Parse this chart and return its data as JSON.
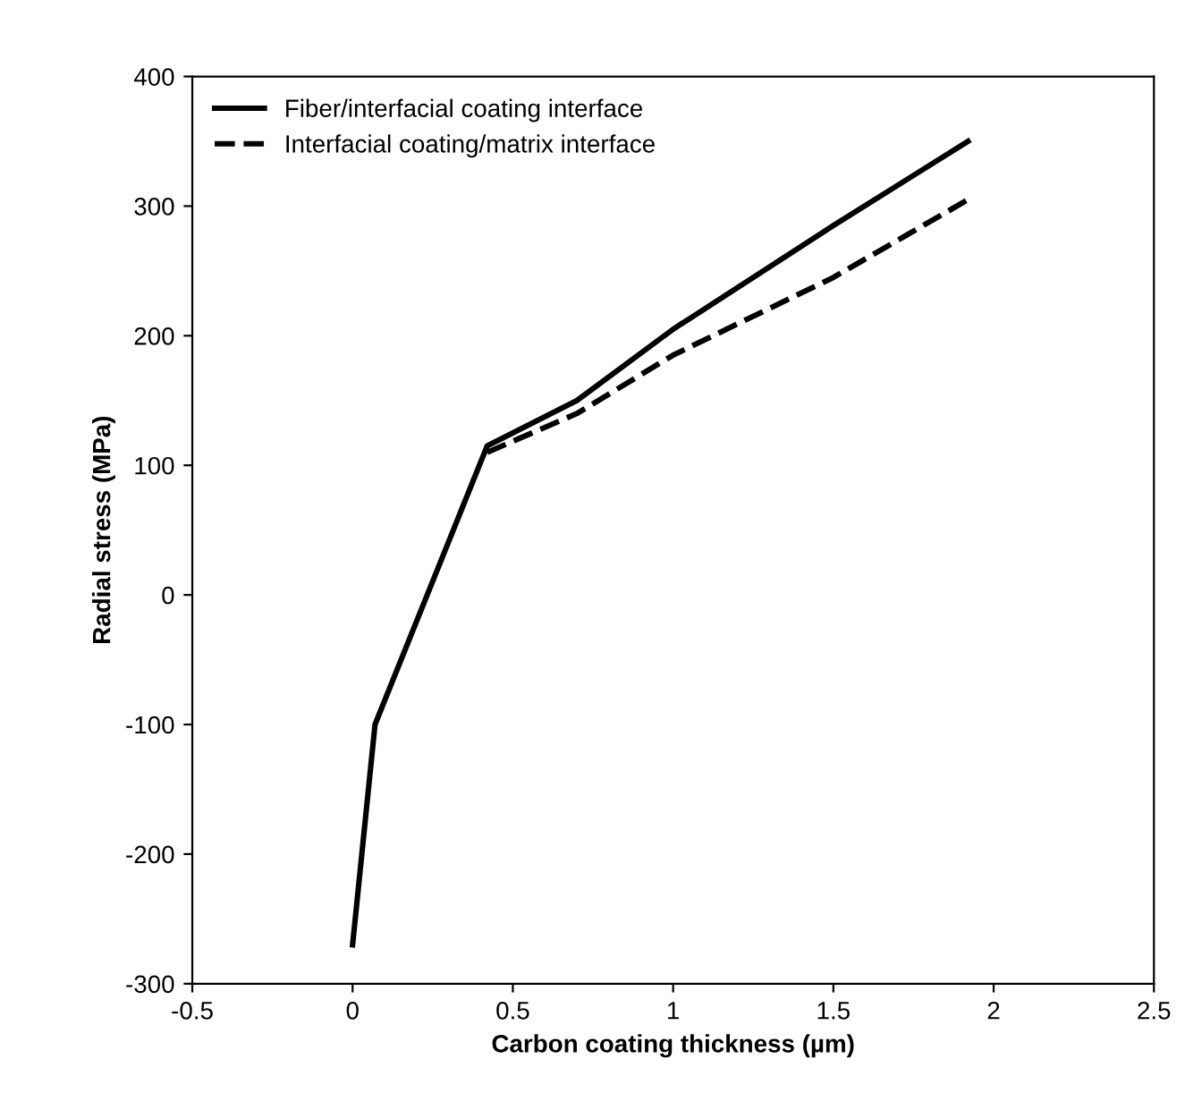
{
  "chart_data": {
    "type": "line",
    "xlabel": "Carbon coating thickness (µm)",
    "ylabel": "Radial stress (MPa)",
    "xlim": [
      -0.5,
      2.5
    ],
    "xticks": [
      -0.5,
      0,
      0.5,
      1,
      1.5,
      2,
      2.5
    ],
    "ylim": [
      -300,
      400
    ],
    "yticks": [
      -300,
      -200,
      -100,
      0,
      100,
      200,
      300,
      400
    ],
    "grid": false,
    "legend": "top left",
    "marker": "none",
    "series": [
      {
        "name": "Fiber/interfacial coating interface",
        "color": "#000000",
        "line_style": "solid",
        "x": [
          0,
          0.07,
          0.42,
          0.7,
          1,
          1.5,
          1.92
        ],
        "values": [
          -270,
          -100,
          115,
          150,
          205,
          285,
          350
        ]
      },
      {
        "name": "Interfacial coating/matrix interface",
        "color": "#000000",
        "line_style": "dashed",
        "x": [
          0.42,
          0.7,
          1,
          1.5,
          1.92
        ],
        "values": [
          110,
          140,
          185,
          245,
          305
        ]
      }
    ]
  }
}
